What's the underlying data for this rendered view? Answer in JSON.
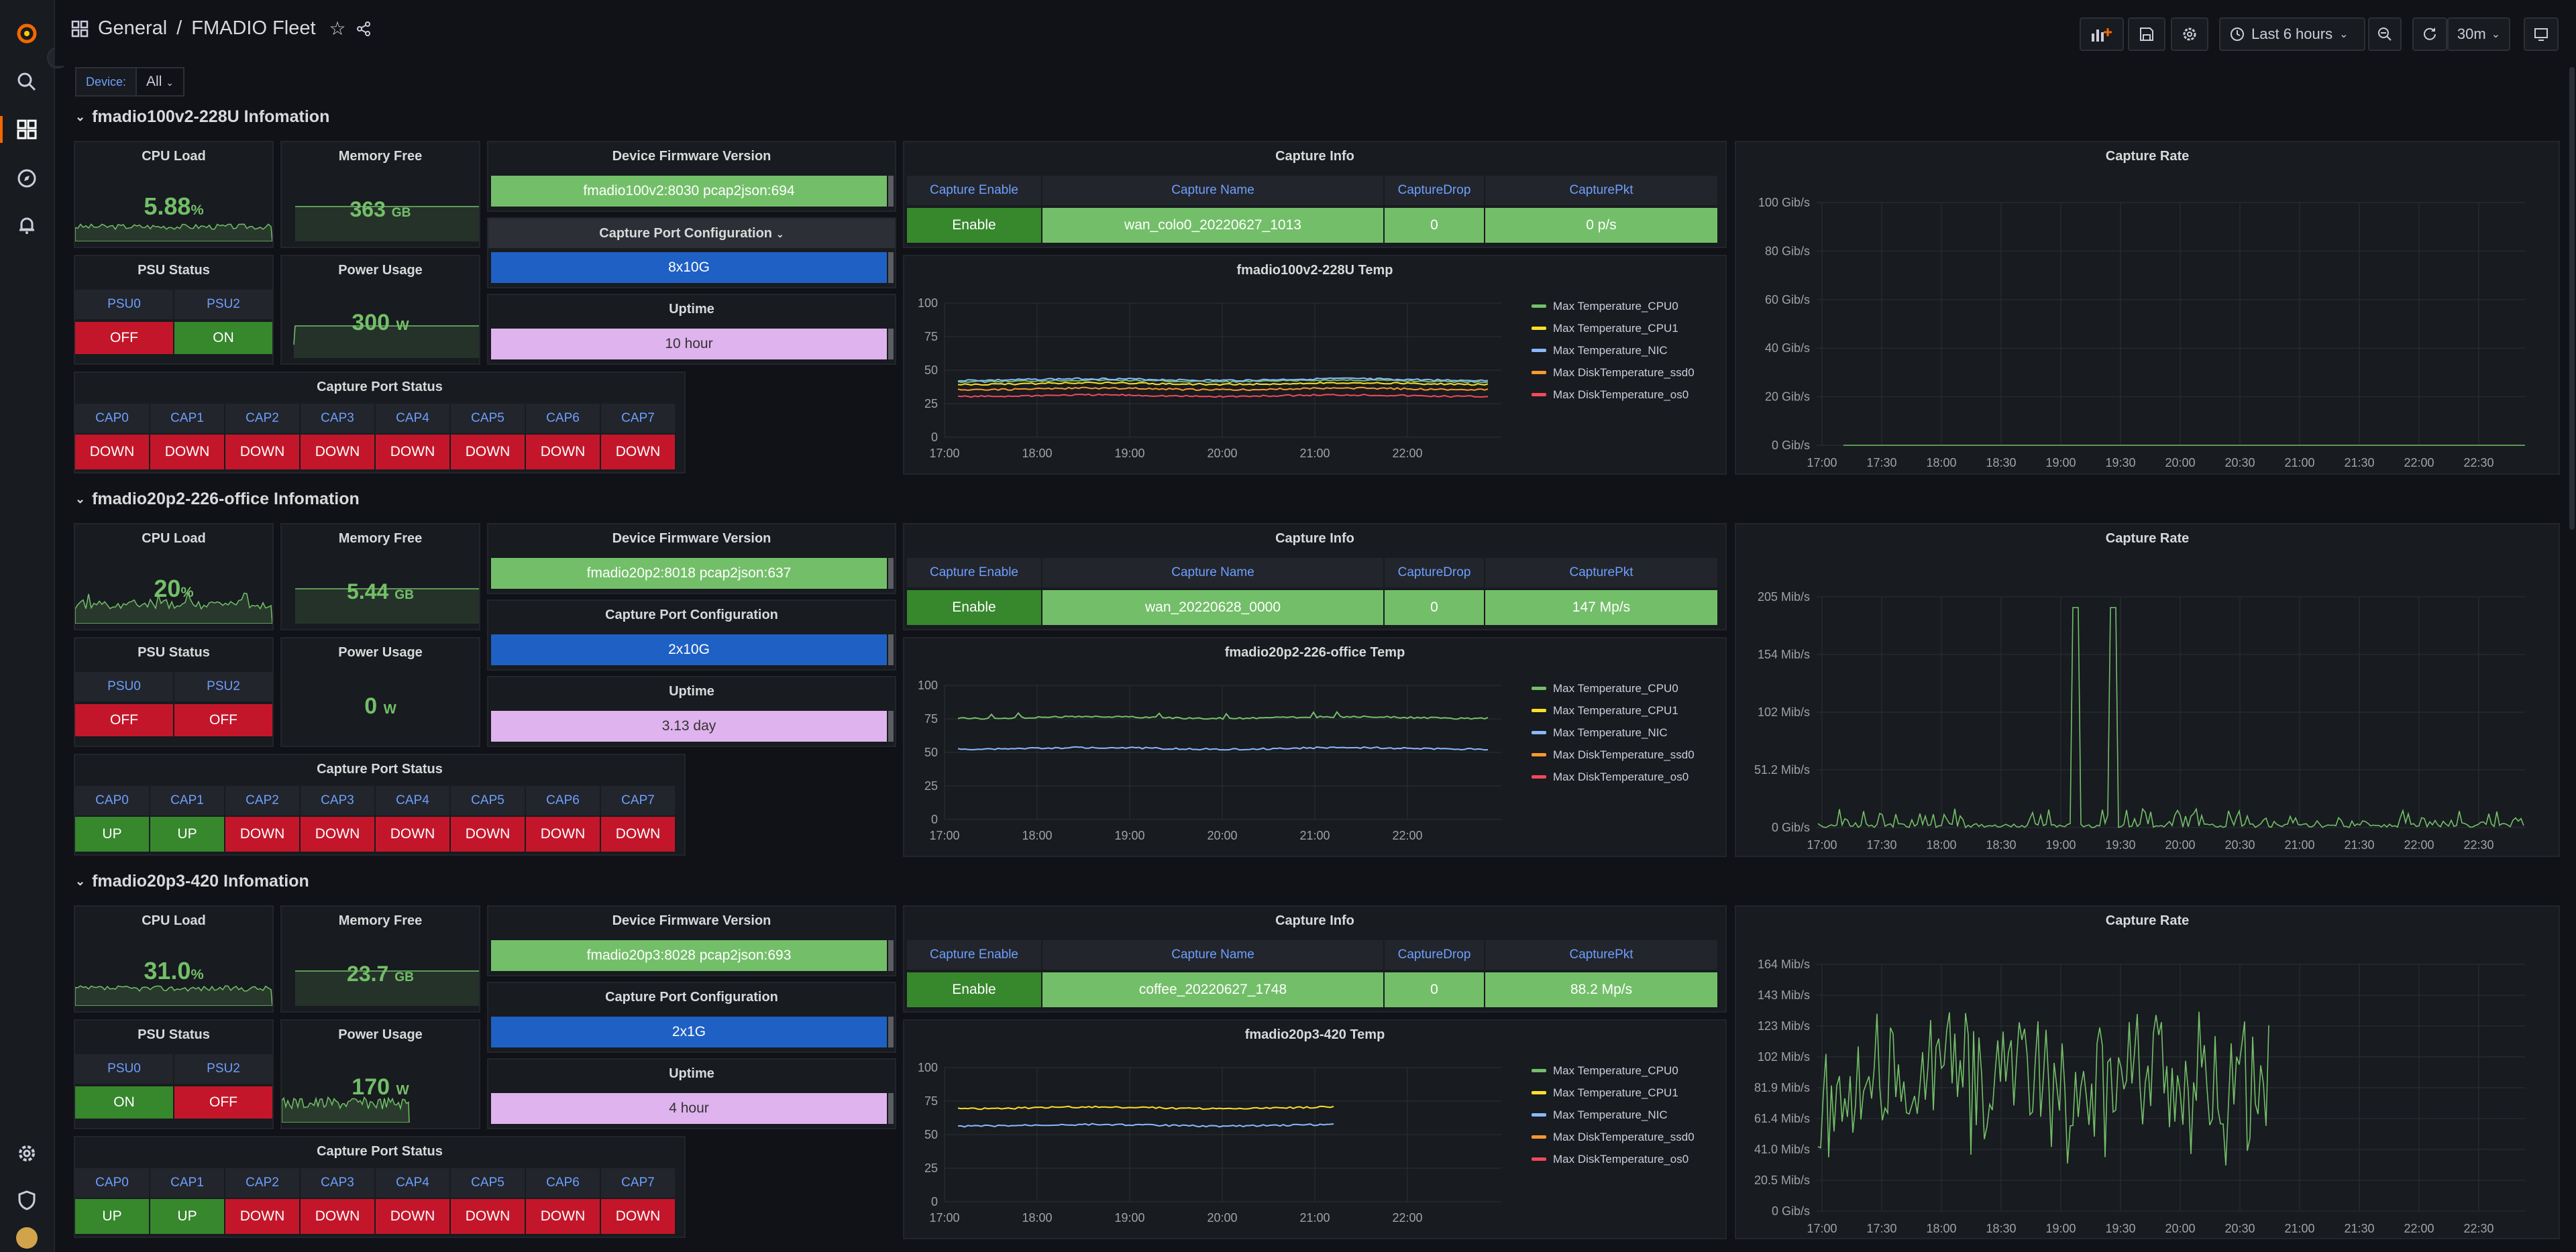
{
  "breadcrumb": {
    "folder": "General",
    "separator": "/",
    "title": "FMADIO Fleet"
  },
  "toolbar": {
    "time_range": "Last 6 hours",
    "refresh": "30m"
  },
  "variable": {
    "label": "Device:",
    "value": "All"
  },
  "colors": {
    "green": "#37872d",
    "red": "#c4162a",
    "lightgreen": "#73bf69",
    "blue": "#1f60c4",
    "purple": "#dfb3ee",
    "cpu0": "#73bf69",
    "cpu1": "#fade2a",
    "nic": "#8ab8ff",
    "ssd0": "#ff9830",
    "os0": "#f2495c"
  },
  "labels": {
    "cpu_load": "CPU Load",
    "memory_free": "Memory Free",
    "psu_status": "PSU Status",
    "power_usage": "Power Usage",
    "device_firmware": "Device Firmware Version",
    "capture_port_config": "Capture Port Configuration",
    "uptime": "Uptime",
    "capture_info": "Capture Info",
    "capture_rate": "Capture Rate",
    "capture_port_status": "Capture Port Status",
    "psu0": "PSU0",
    "psu2": "PSU2",
    "ci_headers": [
      "Capture Enable",
      "Capture Name",
      "CaptureDrop",
      "CapturePkt"
    ],
    "caps": [
      "CAP0",
      "CAP1",
      "CAP2",
      "CAP3",
      "CAP4",
      "CAP5",
      "CAP6",
      "CAP7"
    ]
  },
  "legend": [
    "Max Temperature_CPU0",
    "Max Temperature_CPU1",
    "Max Temperature_NIC",
    "Max DiskTemperature_ssd0",
    "Max DiskTemperature_os0"
  ],
  "devices": [
    {
      "row_title": "fmadio100v2-228U Infomation",
      "cpu_load": "5.88",
      "cpu_unit": "%",
      "memory_free": "363",
      "memory_unit": "GB",
      "psu": [
        "OFF",
        "ON"
      ],
      "power": "300",
      "power_unit": "W",
      "firmware": "fmadio100v2:8030 pcap2json:694",
      "port_config": "8x10G",
      "uptime": "10 hour",
      "capture_info": [
        "Enable",
        "wan_colo0_20220627_1013",
        "0",
        "0 p/s"
      ],
      "ports": [
        "DOWN",
        "DOWN",
        "DOWN",
        "DOWN",
        "DOWN",
        "DOWN",
        "DOWN",
        "DOWN"
      ],
      "temp_title": "fmadio100v2-228U Temp",
      "temp_y_ticks": [
        "100",
        "75",
        "50",
        "25",
        "0"
      ],
      "temp_x_ticks": [
        "17:00",
        "18:00",
        "19:00",
        "20:00",
        "21:00",
        "22:00"
      ],
      "rate_y_ticks": [
        "100 Gib/s",
        "80 Gib/s",
        "60 Gib/s",
        "40 Gib/s",
        "20 Gib/s",
        "0 Gib/s"
      ],
      "rate_x_ticks": [
        "17:00",
        "17:30",
        "18:00",
        "18:30",
        "19:00",
        "19:30",
        "20:00",
        "20:30",
        "21:00",
        "21:30",
        "22:00",
        "22:30"
      ]
    },
    {
      "row_title": "fmadio20p2-226-office Infomation",
      "cpu_load": "20",
      "cpu_unit": "%",
      "memory_free": "5.44",
      "memory_unit": "GB",
      "psu": [
        "OFF",
        "OFF"
      ],
      "power": "0",
      "power_unit": "W",
      "firmware": "fmadio20p2:8018 pcap2json:637",
      "port_config": "2x10G",
      "uptime": "3.13 day",
      "capture_info": [
        "Enable",
        "wan_20220628_0000",
        "0",
        "147 Mp/s"
      ],
      "ports": [
        "UP",
        "UP",
        "DOWN",
        "DOWN",
        "DOWN",
        "DOWN",
        "DOWN",
        "DOWN"
      ],
      "temp_title": "fmadio20p2-226-office Temp",
      "temp_y_ticks": [
        "100",
        "75",
        "50",
        "25",
        "0"
      ],
      "temp_x_ticks": [
        "17:00",
        "18:00",
        "19:00",
        "20:00",
        "21:00",
        "22:00"
      ],
      "rate_y_ticks": [
        "205 Mib/s",
        "154 Mib/s",
        "102 Mib/s",
        "51.2 Mib/s",
        "0 Gib/s"
      ],
      "rate_x_ticks": [
        "17:00",
        "17:30",
        "18:00",
        "18:30",
        "19:00",
        "19:30",
        "20:00",
        "20:30",
        "21:00",
        "21:30",
        "22:00",
        "22:30"
      ]
    },
    {
      "row_title": "fmadio20p3-420 Infomation",
      "cpu_load": "31.0",
      "cpu_unit": "%",
      "memory_free": "23.7",
      "memory_unit": "GB",
      "psu": [
        "ON",
        "OFF"
      ],
      "power": "170",
      "power_unit": "W",
      "firmware": "fmadio20p3:8028 pcap2json:693",
      "port_config": "2x1G",
      "uptime": "4 hour",
      "capture_info": [
        "Enable",
        "coffee_20220627_1748",
        "0",
        "88.2 Mp/s"
      ],
      "ports": [
        "UP",
        "UP",
        "DOWN",
        "DOWN",
        "DOWN",
        "DOWN",
        "DOWN",
        "DOWN"
      ],
      "temp_title": "fmadio20p3-420 Temp",
      "temp_y_ticks": [
        "100",
        "75",
        "50",
        "25",
        "0"
      ],
      "temp_x_ticks": [
        "17:00",
        "18:00",
        "19:00",
        "20:00",
        "21:00",
        "22:00"
      ],
      "rate_y_ticks": [
        "164 Mib/s",
        "143 Mib/s",
        "123 Mib/s",
        "102 Mib/s",
        "81.9 Mib/s",
        "61.4 Mib/s",
        "41.0 Mib/s",
        "20.5 Mib/s",
        "0 Gib/s"
      ],
      "rate_x_ticks": [
        "17:00",
        "17:30",
        "18:00",
        "18:30",
        "19:00",
        "19:30",
        "20:00",
        "20:30",
        "21:00",
        "21:30",
        "22:00",
        "22:30"
      ]
    }
  ]
}
